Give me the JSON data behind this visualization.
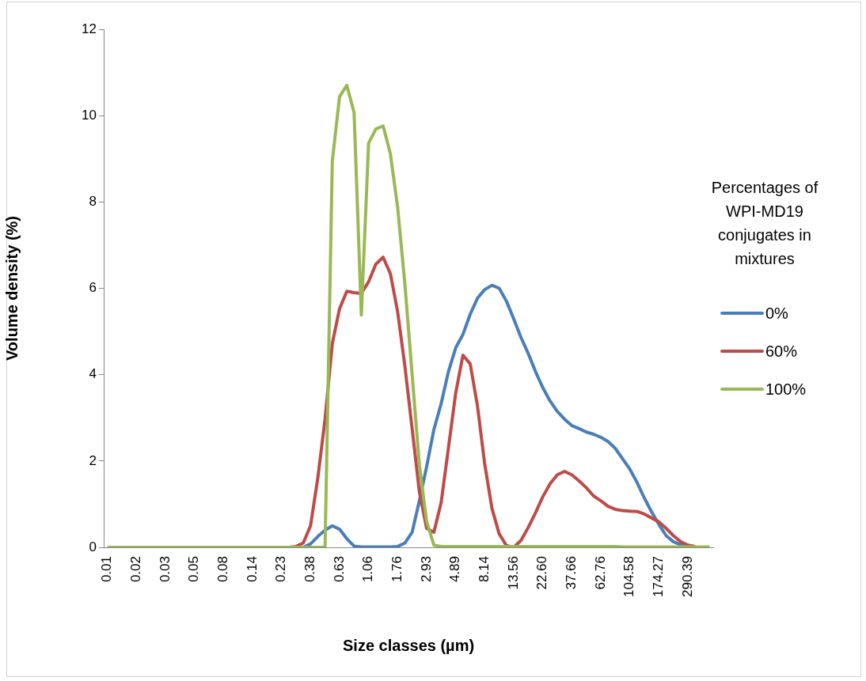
{
  "chart_data": {
    "type": "line",
    "xlabel": "Size classes (µm)",
    "ylabel": "Volume density (%)",
    "legend_title": "Percentages of WPI-MD19 conjugates in mixtures",
    "legend": "right",
    "grid": false,
    "categories": [
      "0.01",
      null,
      null,
      null,
      "0.02",
      null,
      null,
      null,
      "0.03",
      null,
      null,
      null,
      "0.05",
      null,
      null,
      null,
      "0.08",
      null,
      null,
      null,
      "0.14",
      null,
      null,
      null,
      "0.23",
      null,
      null,
      null,
      "0.38",
      null,
      null,
      null,
      "0.63",
      null,
      null,
      null,
      "1.06",
      null,
      null,
      null,
      "1.76",
      null,
      null,
      null,
      "2.93",
      null,
      null,
      null,
      "4.89",
      null,
      null,
      null,
      "8.14",
      null,
      null,
      null,
      "13.56",
      null,
      null,
      null,
      "22.60",
      null,
      null,
      null,
      "37.66",
      null,
      null,
      null,
      "62.76",
      null,
      null,
      null,
      "104.58",
      null,
      null,
      null,
      "174.27",
      null,
      null,
      null,
      "290.39",
      null,
      null,
      null
    ],
    "ylim": [
      0,
      12
    ],
    "yticks": [
      0,
      2,
      4,
      6,
      8,
      10,
      12
    ],
    "series": [
      {
        "name": "0%",
        "color": "#4a7ebb",
        "values": [
          null,
          null,
          null,
          null,
          null,
          null,
          null,
          null,
          null,
          null,
          null,
          null,
          null,
          null,
          null,
          null,
          null,
          null,
          null,
          null,
          null,
          null,
          null,
          null,
          null,
          null,
          null,
          0,
          0.08,
          0.25,
          0.4,
          0.5,
          0.42,
          0.2,
          0.03,
          0.01,
          0.01,
          0.01,
          0.01,
          0.01,
          0.02,
          0.1,
          0.35,
          1.08,
          1.87,
          2.73,
          3.33,
          4.07,
          4.62,
          4.93,
          5.4,
          5.77,
          5.97,
          6.07,
          6.0,
          5.7,
          5.29,
          4.86,
          4.49,
          4.07,
          3.7,
          3.39,
          3.15,
          2.97,
          2.82,
          2.75,
          2.67,
          2.62,
          2.55,
          2.45,
          2.29,
          2.05,
          1.81,
          1.5,
          1.14,
          0.82,
          0.53,
          0.27,
          0.13,
          0.06,
          0.02,
          null,
          null,
          null
        ]
      },
      {
        "name": "60%",
        "color": "#be4b48",
        "values": [
          null,
          null,
          null,
          null,
          null,
          null,
          null,
          null,
          null,
          null,
          null,
          null,
          null,
          null,
          null,
          null,
          null,
          null,
          null,
          null,
          null,
          null,
          null,
          null,
          null,
          0,
          0.02,
          0.1,
          0.5,
          1.6,
          2.97,
          4.72,
          5.53,
          5.93,
          5.9,
          5.88,
          6.15,
          6.56,
          6.72,
          6.34,
          5.46,
          4.2,
          2.75,
          1.28,
          0.44,
          0.35,
          1.04,
          2.3,
          3.57,
          4.45,
          4.25,
          3.28,
          1.93,
          0.9,
          0.31,
          0.04,
          0,
          0.16,
          0.46,
          0.8,
          1.17,
          1.47,
          1.68,
          1.76,
          1.68,
          1.54,
          1.38,
          1.19,
          1.08,
          0.95,
          0.88,
          0.85,
          0.84,
          0.83,
          0.77,
          0.68,
          0.59,
          0.44,
          0.27,
          0.13,
          0.05,
          0.02,
          null,
          null
        ]
      },
      {
        "name": "100%",
        "color": "#98b954",
        "values": [
          0,
          0,
          0,
          0,
          0,
          0,
          0,
          0,
          0,
          0,
          0,
          0,
          0,
          0,
          0,
          0,
          0,
          0,
          0,
          0,
          0,
          0,
          0,
          0,
          0,
          0,
          0,
          0,
          0,
          0,
          0,
          8.94,
          10.44,
          10.7,
          10.07,
          5.38,
          9.36,
          9.69,
          9.76,
          9.12,
          7.88,
          6.1,
          4.0,
          1.9,
          0.6,
          0.05,
          0.02,
          0.02,
          0.02,
          0.02,
          0.02,
          0.02,
          0.02,
          0.02,
          0.02,
          0.02,
          0.02,
          0.02,
          0.02,
          0.02,
          0.02,
          0.02,
          0.02,
          0.02,
          0.02,
          0.02,
          0.02,
          0.02,
          0.02,
          0.02,
          0.02,
          0.01,
          0.01,
          0.01,
          0.01,
          0.01,
          0.01,
          0.01,
          0.01,
          0.01,
          0.01,
          0.01,
          0.01,
          0.01
        ]
      }
    ]
  }
}
